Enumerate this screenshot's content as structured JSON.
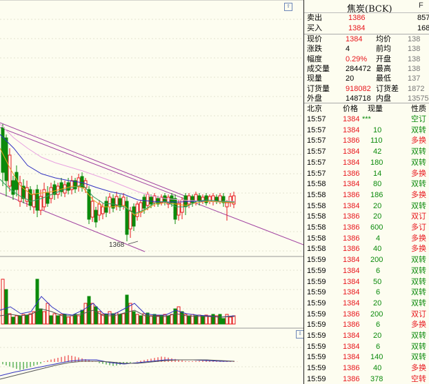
{
  "window": {
    "title": "焦炭(BCK)",
    "title_extra": "F",
    "scroll_up": "⇧",
    "scroll_down": "⇩"
  },
  "chart": {
    "low_label": "1368"
  },
  "quote": {
    "sell": {
      "label": "卖出",
      "value": "1386",
      "side": "857"
    },
    "buy": {
      "label": "买入",
      "value": "1384",
      "side": "168"
    },
    "stats": [
      {
        "l": "现价",
        "v": "1384",
        "l2": "均价",
        "v2": "138"
      },
      {
        "l": "涨跌",
        "v": "4",
        "l2": "前均",
        "v2": "138"
      },
      {
        "l": "幅度",
        "v": "0.29%",
        "l2": "开盘",
        "v2": "138"
      },
      {
        "l": "成交量",
        "v": "284472",
        "l2": "最高",
        "v2": "138"
      },
      {
        "l": "现量",
        "v": "20",
        "l2": "最低",
        "v2": "137"
      },
      {
        "l": "订货量",
        "v": "918082",
        "l2": "订货差",
        "v2": "1872"
      },
      {
        "l": "外盘",
        "v": "148718",
        "l2": "内盘",
        "v2": "13575"
      }
    ]
  },
  "ticks_header": {
    "location": "北京",
    "price": "价格",
    "volume": "现量",
    "nature": "性质"
  },
  "ticks": [
    {
      "time": "15:57",
      "price": "1384",
      "vol": "***",
      "type": "空订"
    },
    {
      "time": "15:57",
      "price": "1384",
      "vol": "10",
      "type": "双转"
    },
    {
      "time": "15:57",
      "price": "1386",
      "vol": "110",
      "type": "多换"
    },
    {
      "time": "15:57",
      "price": "1384",
      "vol": "42",
      "type": "双转"
    },
    {
      "time": "15:57",
      "price": "1384",
      "vol": "180",
      "type": "双转"
    },
    {
      "time": "15:57",
      "price": "1386",
      "vol": "14",
      "type": "多换"
    },
    {
      "time": "15:58",
      "price": "1384",
      "vol": "80",
      "type": "双转"
    },
    {
      "time": "15:58",
      "price": "1386",
      "vol": "186",
      "type": "多换"
    },
    {
      "time": "15:58",
      "price": "1384",
      "vol": "20",
      "type": "双转"
    },
    {
      "time": "15:58",
      "price": "1386",
      "vol": "20",
      "type": "双订"
    },
    {
      "time": "15:58",
      "price": "1386",
      "vol": "600",
      "type": "多订"
    },
    {
      "time": "15:58",
      "price": "1386",
      "vol": "4",
      "type": "多换"
    },
    {
      "time": "15:58",
      "price": "1386",
      "vol": "40",
      "type": "多换"
    },
    {
      "time": "15:59",
      "price": "1384",
      "vol": "200",
      "type": "双转"
    },
    {
      "time": "15:59",
      "price": "1384",
      "vol": "6",
      "type": "双转"
    },
    {
      "time": "15:59",
      "price": "1384",
      "vol": "50",
      "type": "双转"
    },
    {
      "time": "15:59",
      "price": "1384",
      "vol": "6",
      "type": "双转"
    },
    {
      "time": "15:59",
      "price": "1384",
      "vol": "20",
      "type": "双转"
    },
    {
      "time": "15:59",
      "price": "1386",
      "vol": "200",
      "type": "双订"
    },
    {
      "time": "15:59",
      "price": "1386",
      "vol": "6",
      "type": "多换"
    },
    {
      "time": "15:59",
      "price": "1384",
      "vol": "20",
      "type": "双转"
    },
    {
      "time": "15:59",
      "price": "1384",
      "vol": "6",
      "type": "双转"
    },
    {
      "time": "15:59",
      "price": "1384",
      "vol": "140",
      "type": "双转"
    },
    {
      "time": "15:59",
      "price": "1386",
      "vol": "40",
      "type": "多换"
    },
    {
      "time": "15:59",
      "price": "1386",
      "vol": "378",
      "type": "空转"
    }
  ],
  "colors": {
    "up": "#e8161c",
    "down": "#0b8a0b",
    "grid": "#c8c8b0",
    "panel_bg": "#fdfdf0"
  }
}
